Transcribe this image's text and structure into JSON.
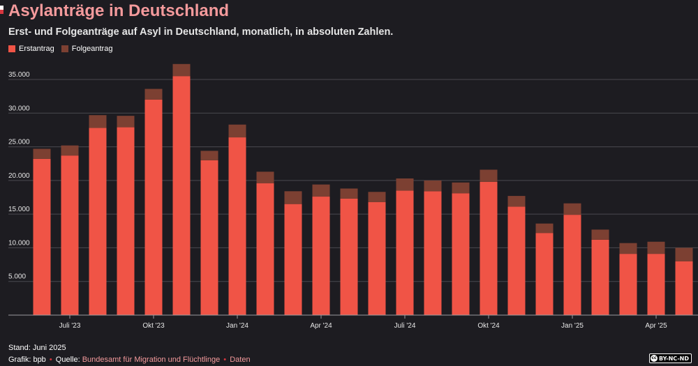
{
  "header": {
    "title": "Asylanträge in Deutschland",
    "subtitle": "Erst- und Folgeanträge auf Asyl in Deutschland, monatlich, in absoluten Zahlen."
  },
  "legend": [
    {
      "label": "Erstantrag",
      "color": "#f05446"
    },
    {
      "label": "Folgeantrag",
      "color": "#7c4032"
    }
  ],
  "footer": {
    "stand": "Stand: Juni 2025",
    "grafik_prefix": "Grafik: bpb",
    "quelle_prefix": "Quelle: ",
    "quelle_link": "Bundesamt für Migration und Flüchtlinge",
    "daten_link": "Daten",
    "separator": "•",
    "license": "BY-NC-ND",
    "license_icon": "cc"
  },
  "chart_data": {
    "type": "bar",
    "stacked": true,
    "categories": [
      "Jun 2023",
      "Jul 2023",
      "Aug 2023",
      "Sep 2023",
      "Okt 2023",
      "Nov 2023",
      "Dez 2023",
      "Jan 2024",
      "Feb 2024",
      "Mär 2024",
      "Apr 2024",
      "Mai 2024",
      "Jun 2024",
      "Jul 2024",
      "Aug 2024",
      "Sep 2024",
      "Okt 2024",
      "Nov 2024",
      "Dez 2024",
      "Jan 2025",
      "Feb 2025",
      "Mär 2025",
      "Apr 2025",
      "Mai 2025"
    ],
    "series": [
      {
        "name": "Erstantrag",
        "color": "#f05446",
        "values": [
          23200,
          23700,
          27800,
          27900,
          32000,
          35500,
          23000,
          26400,
          19600,
          16500,
          17600,
          17300,
          16800,
          18500,
          18400,
          18100,
          19800,
          16100,
          12200,
          14900,
          11200,
          9100,
          9100,
          8000
        ]
      },
      {
        "name": "Folgeantrag",
        "color": "#7c4032",
        "values": [
          1500,
          1500,
          1900,
          1700,
          1600,
          1800,
          1400,
          1900,
          1700,
          1900,
          1800,
          1500,
          1500,
          1800,
          1600,
          1600,
          1800,
          1600,
          1400,
          1700,
          1500,
          1600,
          1800,
          2000
        ]
      }
    ],
    "x_tick_labels": [
      {
        "label": "Juli '23",
        "index": 1
      },
      {
        "label": "Okt '23",
        "index": 4
      },
      {
        "label": "Jan '24",
        "index": 7
      },
      {
        "label": "Apr '24",
        "index": 10
      },
      {
        "label": "Juli '24",
        "index": 13
      },
      {
        "label": "Okt '24",
        "index": 16
      },
      {
        "label": "Jan '25",
        "index": 19
      },
      {
        "label": "Apr '25",
        "index": 22
      }
    ],
    "y_ticks": [
      {
        "value": 5000,
        "label": "5.000"
      },
      {
        "value": 10000,
        "label": "10.000"
      },
      {
        "value": 15000,
        "label": "15.000"
      },
      {
        "value": 20000,
        "label": "20.000"
      },
      {
        "value": 25000,
        "label": "25.000"
      },
      {
        "value": 30000,
        "label": "30.000"
      },
      {
        "value": 35000,
        "label": "35.000"
      }
    ],
    "ylim": [
      0,
      35000
    ],
    "grid": true,
    "legend_position": "top-left"
  }
}
